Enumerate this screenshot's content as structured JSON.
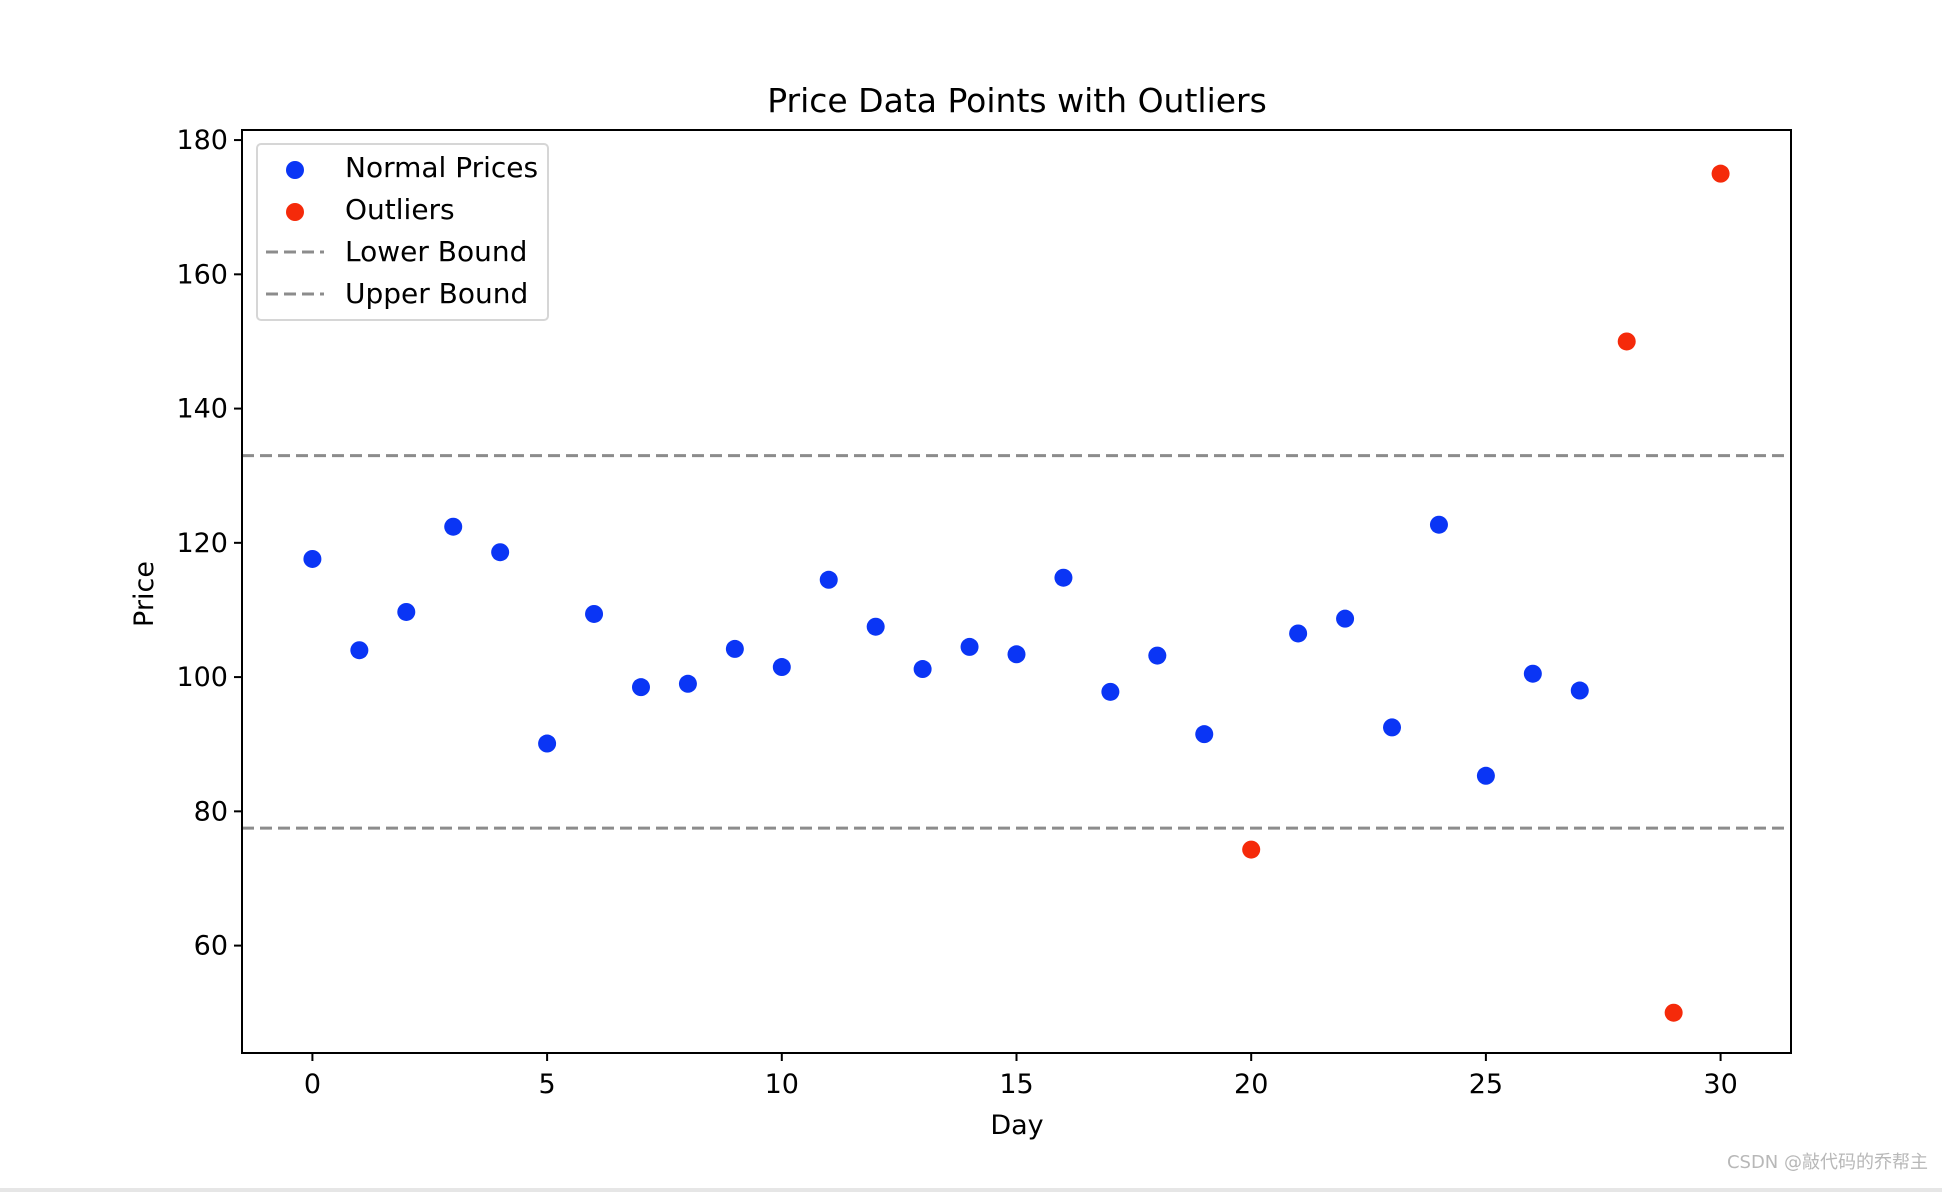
{
  "chart_data": {
    "type": "scatter",
    "title": "Price Data Points with Outliers",
    "xlabel": "Day",
    "ylabel": "Price",
    "xlim": [
      -1.5,
      31.5
    ],
    "ylim": [
      44,
      181.5
    ],
    "xticks": [
      0,
      5,
      10,
      15,
      20,
      25,
      30
    ],
    "yticks": [
      60,
      80,
      100,
      120,
      140,
      160,
      180
    ],
    "grid": false,
    "legend": "top-left",
    "series": [
      {
        "name": "Normal Prices",
        "kind": "scatter",
        "color": "#0a35f5",
        "x": [
          0,
          1,
          2,
          3,
          4,
          5,
          6,
          7,
          8,
          9,
          10,
          11,
          12,
          13,
          14,
          15,
          16,
          17,
          18,
          19,
          21,
          22,
          23,
          24,
          25,
          26,
          27
        ],
        "y": [
          117.6,
          104.0,
          109.7,
          122.4,
          118.6,
          90.1,
          109.4,
          98.5,
          99.0,
          104.2,
          101.5,
          114.5,
          107.5,
          101.2,
          104.5,
          103.4,
          114.8,
          97.8,
          103.2,
          91.5,
          106.5,
          108.7,
          92.5,
          122.7,
          85.3,
          100.5,
          98.0
        ]
      },
      {
        "name": "Outliers",
        "kind": "scatter",
        "color": "#f52a0a",
        "x": [
          20,
          28,
          29,
          30
        ],
        "y": [
          74.3,
          150.0,
          50.0,
          175.0
        ]
      },
      {
        "name": "Lower Bound",
        "kind": "hline",
        "color": "#8c8c8c",
        "y": 77.5
      },
      {
        "name": "Upper Bound",
        "kind": "hline",
        "color": "#8c8c8c",
        "y": 133.0
      }
    ]
  },
  "watermark": "CSDN @敲代码的乔帮主"
}
